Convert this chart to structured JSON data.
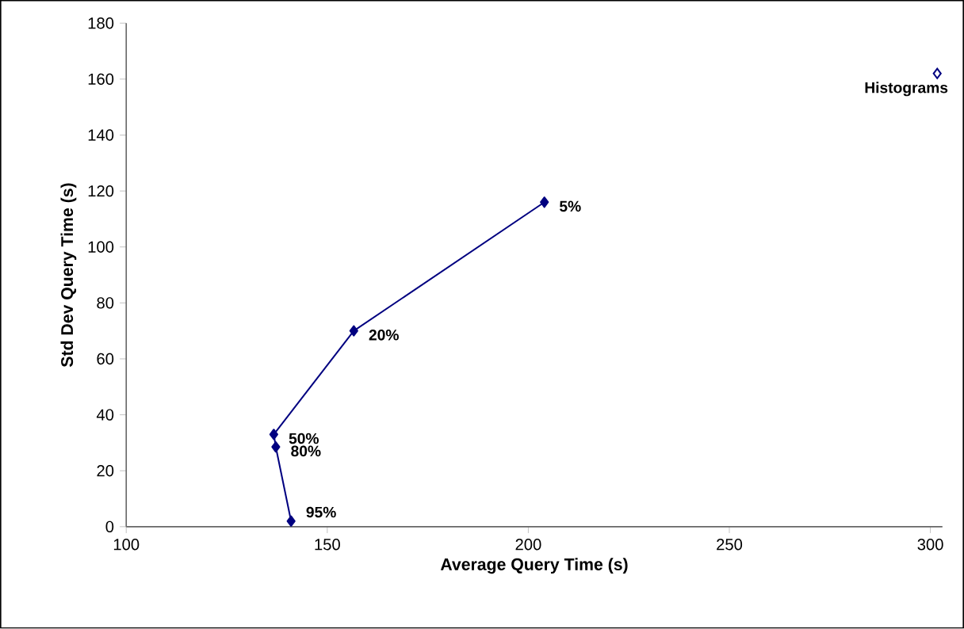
{
  "chart_data": {
    "type": "line",
    "xlabel": "Average Query Time (s)",
    "ylabel": "Std Dev Query Time (s)",
    "series": [
      {
        "color": "#000080",
        "x": [
          204.0,
          156.6,
          136.7,
          137.2,
          141.0
        ],
        "values": [
          116,
          70,
          33,
          28.5,
          2
        ]
      },
      {
        "type": "scatter",
        "color": "#000080",
        "x": [
          301.7
        ],
        "values": [
          162
        ]
      }
    ],
    "annotations": [
      {
        "text": "5%",
        "x": 204.0,
        "y": 116
      },
      {
        "text": "20%",
        "x": 156.6,
        "y": 70
      },
      {
        "text": "50%",
        "x": 136.7,
        "y": 33
      },
      {
        "text": "80%",
        "x": 137.2,
        "y": 28.5
      },
      {
        "text": "95%",
        "x": 141.0,
        "y": 2
      },
      {
        "text": "Histograms",
        "x": 301.7,
        "y": 162
      }
    ],
    "xlim": [
      100,
      303
    ],
    "xticks": [
      100,
      150,
      200,
      250,
      300
    ],
    "ylim": [
      0,
      180
    ],
    "yticks": [
      0,
      20,
      40,
      60,
      80,
      100,
      120,
      140,
      160,
      180
    ],
    "marker": "diamond",
    "grid": false
  }
}
